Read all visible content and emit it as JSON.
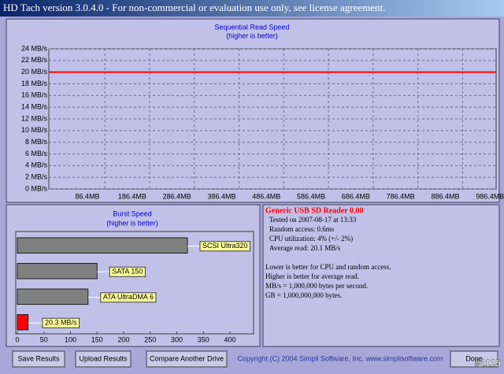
{
  "window": {
    "title": "HD Tach version 3.0.4.0  - For non-commercial or evaluation use only, see license agreement."
  },
  "chart_data": [
    {
      "type": "line",
      "title": "Sequential Read Speed",
      "subtitle": "(higher is better)",
      "x": [
        0,
        1000
      ],
      "series": [
        {
          "color": "#ff0000",
          "values": [
            20,
            20
          ]
        }
      ],
      "xlim": [
        0,
        1000
      ],
      "xticks": [
        {
          "value": 86.4,
          "label": "86.4MB"
        },
        {
          "value": 186.4,
          "label": "186.4MB"
        },
        {
          "value": 286.4,
          "label": "286.4MB"
        },
        {
          "value": 386.4,
          "label": "386.4MB"
        },
        {
          "value": 486.4,
          "label": "486.4MB"
        },
        {
          "value": 586.4,
          "label": "586.4MB"
        },
        {
          "value": 686.4,
          "label": "686.4MB"
        },
        {
          "value": 786.4,
          "label": "786.4MB"
        },
        {
          "value": 886.4,
          "label": "886.4MB"
        },
        {
          "value": 986.4,
          "label": "986.4MB"
        }
      ],
      "ylim": [
        0,
        24
      ],
      "yticks": [
        {
          "value": 0,
          "label": "0 MB/s"
        },
        {
          "value": 2,
          "label": "2 MB/s"
        },
        {
          "value": 4,
          "label": "4 MB/s"
        },
        {
          "value": 6,
          "label": "6 MB/s"
        },
        {
          "value": 8,
          "label": "8 MB/s"
        },
        {
          "value": 10,
          "label": "10 MB/s"
        },
        {
          "value": 12,
          "label": "12 MB/s"
        },
        {
          "value": 14,
          "label": "14 MB/s"
        },
        {
          "value": 16,
          "label": "16 MB/s"
        },
        {
          "value": 18,
          "label": "18 MB/s"
        },
        {
          "value": 20,
          "label": "20 MB/s"
        },
        {
          "value": 22,
          "label": "22 MB/s"
        },
        {
          "value": 24,
          "label": "24 MB/s"
        }
      ],
      "grid": true
    },
    {
      "type": "hbar",
      "title": "Burst Speed",
      "subtitle": "(higher is better)",
      "categories": [
        "SCSI Ultra320",
        "SATA 150",
        "ATA UltraDMA 6",
        null
      ],
      "values": [
        320,
        150,
        133,
        20.3
      ],
      "value_labels": [
        null,
        null,
        null,
        "20.3 MB/s"
      ],
      "colors": [
        "#808080",
        "#808080",
        "#808080",
        "#ff0000"
      ],
      "xlim": [
        0,
        430
      ],
      "xticks": [
        0,
        50,
        100,
        150,
        200,
        250,
        300,
        350,
        400
      ]
    }
  ],
  "info": {
    "drive": "Generic USB SD Reader 0.00",
    "lines": [
      "Tested on 2007-08-17 at 13:33",
      "Random access: 0.6ms",
      "CPU utilization: 4% (+/- 2%)",
      "Average read: 20.1 MB/s"
    ],
    "notes": [
      "Lower is better for CPU and random access.",
      "Higher is better for average read.",
      "MB/s = 1,000,000 bytes per second.",
      "GB = 1,000,000,000 bytes."
    ]
  },
  "buttons": [
    "Save Results",
    "Upload Results",
    "Compare Another Drive",
    "Done"
  ],
  "copyright": "Copyright (C) 2004 Simpli Software, Inc. www.simplisoftware.com",
  "watermark": "#4125"
}
